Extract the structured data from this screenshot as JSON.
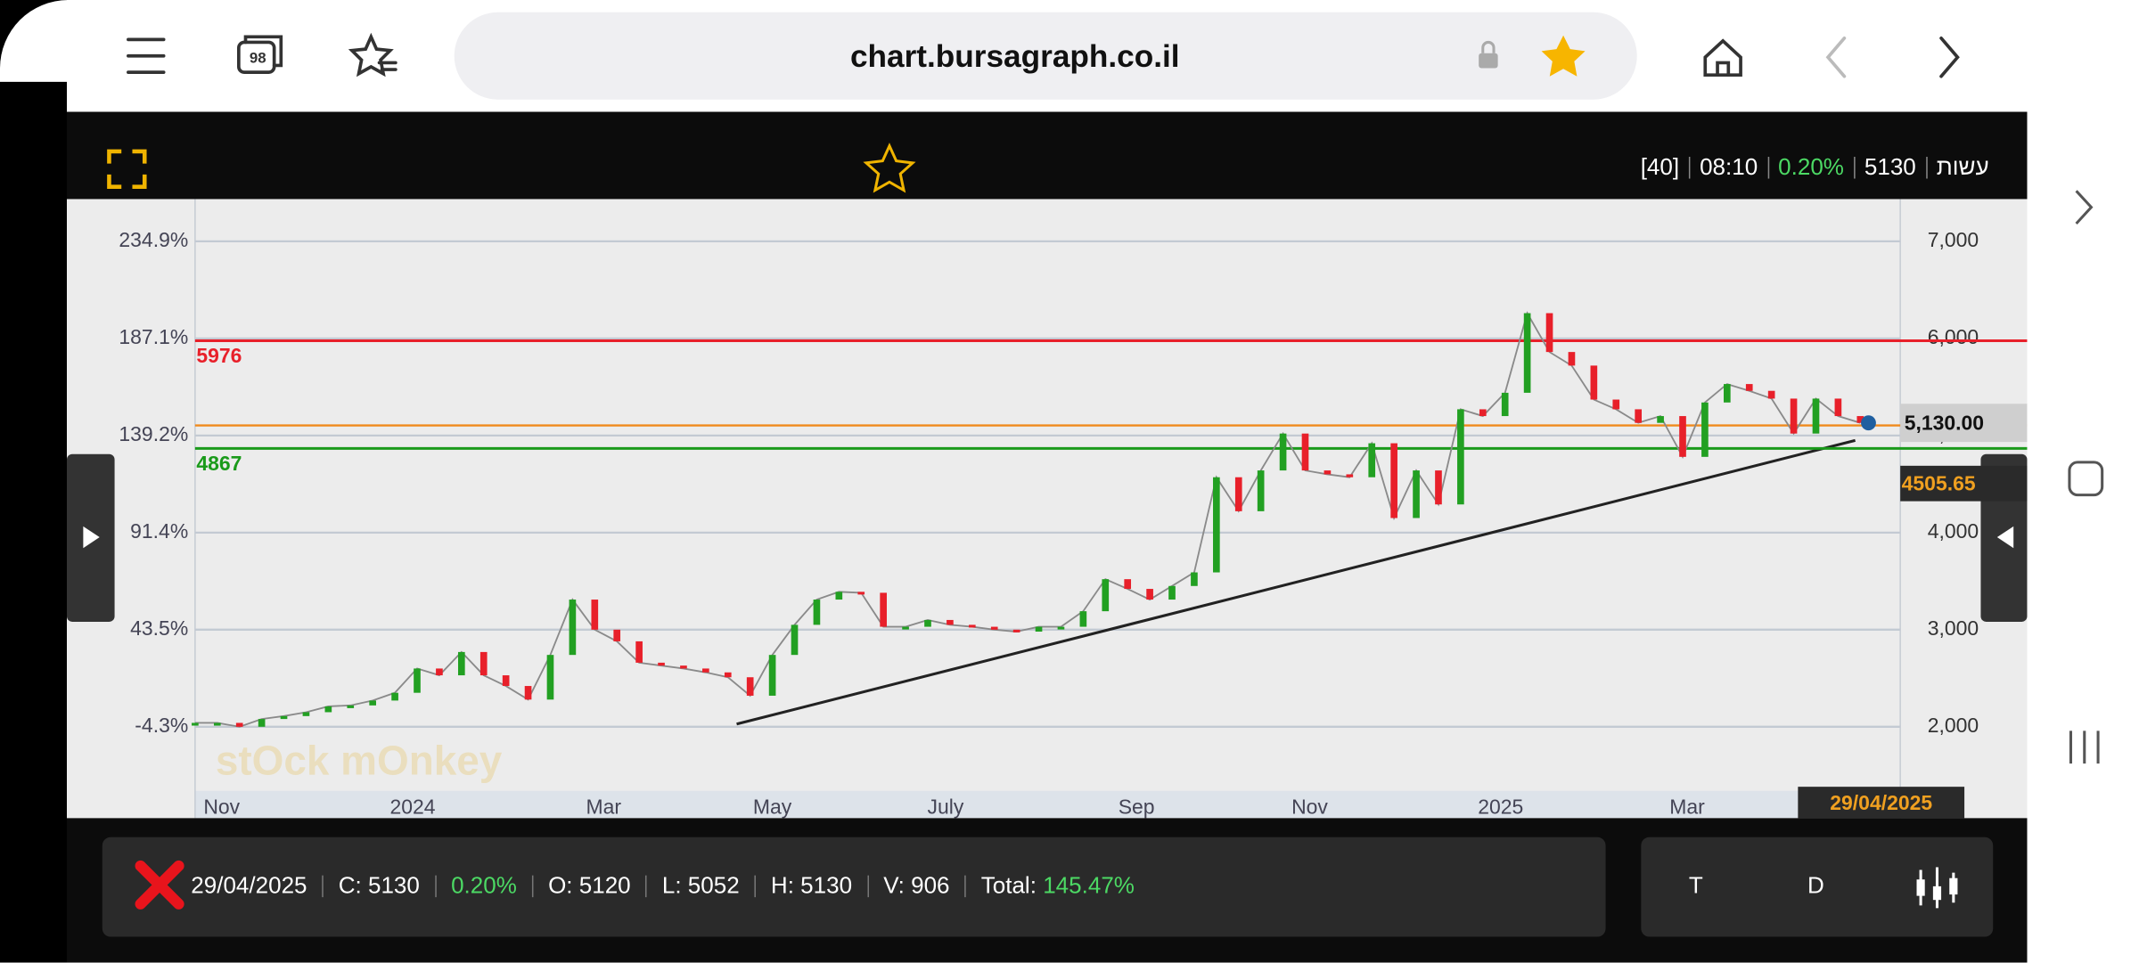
{
  "browser": {
    "tab_count": "98",
    "url": "chart.bursagraph.co.il"
  },
  "header": {
    "ticker": "עשות",
    "price": "5130",
    "change": "0.20%",
    "time": "08:10",
    "period": "[40]"
  },
  "chart": {
    "type": "line",
    "x": [
      0,
      5,
      10,
      15,
      20,
      25,
      30,
      35,
      40,
      45,
      50,
      55,
      60,
      65,
      70,
      75,
      80,
      85,
      90,
      95,
      100,
      105,
      110,
      115,
      120,
      125,
      130,
      135,
      140,
      145,
      150,
      155,
      160,
      165,
      170,
      175,
      180,
      185,
      190,
      195,
      200,
      205,
      210,
      215,
      220,
      225,
      230,
      235,
      240,
      245,
      250,
      255,
      260,
      265,
      270,
      275,
      280,
      285,
      290,
      295,
      300,
      305,
      310,
      315,
      320,
      325,
      330,
      335,
      340,
      345,
      350,
      355,
      360,
      365,
      370,
      375
    ],
    "close": [
      2040,
      2040,
      2000,
      2080,
      2110,
      2150,
      2210,
      2220,
      2270,
      2350,
      2600,
      2530,
      2770,
      2530,
      2420,
      2280,
      2740,
      3310,
      3000,
      2880,
      2660,
      2630,
      2600,
      2560,
      2510,
      2320,
      2740,
      3050,
      3310,
      3390,
      3380,
      3030,
      3030,
      3100,
      3050,
      3030,
      3000,
      2980,
      3030,
      3030,
      3190,
      3520,
      3420,
      3310,
      3450,
      3590,
      4570,
      4220,
      4640,
      5020,
      4640,
      4600,
      4570,
      4920,
      4150,
      4640,
      4290,
      5270,
      5200,
      5440,
      6260,
      5860,
      5720,
      5370,
      5270,
      5130,
      5200,
      4780,
      5340,
      5530,
      5460,
      5380,
      5020,
      5380,
      5200,
      5130
    ],
    "up_color": "#22a022",
    "down_color": "#e8202a",
    "xlim": [
      0,
      384
    ],
    "xticks": [
      {
        "value": 6,
        "label": "Nov"
      },
      {
        "value": 49,
        "label": "2024"
      },
      {
        "value": 92,
        "label": "Mar"
      },
      {
        "value": 130,
        "label": "May"
      },
      {
        "value": 169,
        "label": "July"
      },
      {
        "value": 212,
        "label": "Sep"
      },
      {
        "value": 251,
        "label": "Nov"
      },
      {
        "value": 294,
        "label": "2025"
      },
      {
        "value": 336,
        "label": "Mar"
      }
    ],
    "ylim": [
      1340,
      7435
    ],
    "yticks": [
      {
        "value": 2000,
        "label": "2,000"
      },
      {
        "value": 3000,
        "label": "3,000"
      },
      {
        "value": 4000,
        "label": "4,000"
      },
      {
        "value": 5000,
        "label": "5,000"
      },
      {
        "value": 6000,
        "label": "6,000"
      },
      {
        "value": 7000,
        "label": "7,000"
      }
    ],
    "y2lim": [
      -35.9,
      255.7
    ],
    "y2ticks": [
      {
        "value": -4.3,
        "label": "-4.3%"
      },
      {
        "value": 43.5,
        "label": "43.5%"
      },
      {
        "value": 91.4,
        "label": "91.4%"
      },
      {
        "value": 139.2,
        "label": "139.2%"
      },
      {
        "value": 187.1,
        "label": "187.1%"
      },
      {
        "value": 234.9,
        "label": "234.9%"
      }
    ],
    "grid": true,
    "levels": [
      {
        "value": 5976,
        "color": "#e8202a"
      },
      {
        "value": 4867,
        "color": "#1a9a1a"
      }
    ],
    "last_price": {
      "value": 5130,
      "label": "5,130.00"
    },
    "trend_price": 4505.65,
    "cursor_date": "29/04/2025",
    "watermark": "stOck mOnkey"
  },
  "status": {
    "date": "29/04/2025",
    "close": "C: 5130",
    "change": "0.20%",
    "open": "O: 5120",
    "low": "L: 5052",
    "high": "H: 5130",
    "volume": "V: 906",
    "total_label": "Total:",
    "total": "145.47%"
  },
  "buttons": [
    "T",
    "D"
  ]
}
